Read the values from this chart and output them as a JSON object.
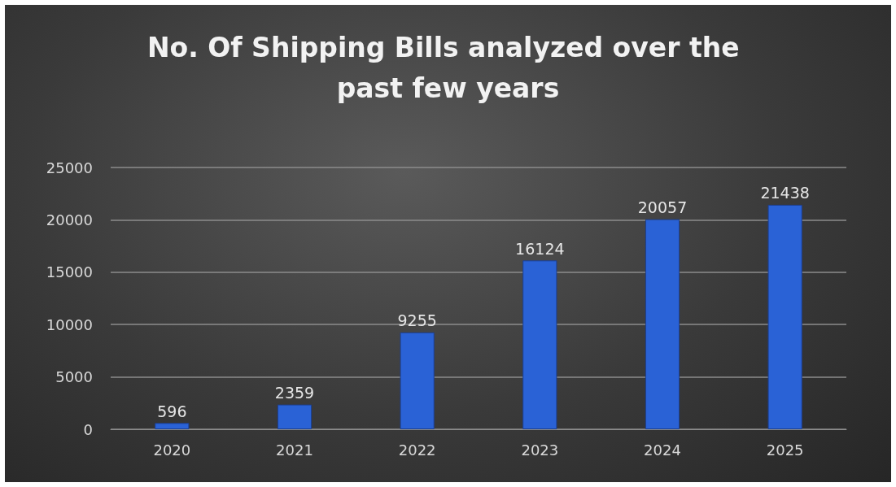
{
  "chart_data": {
    "type": "bar",
    "title": "No. Of Shipping Bills analyzed over the past few years",
    "categories": [
      "2020",
      "2021",
      "2022",
      "2023",
      "2024",
      "2025"
    ],
    "values": [
      596,
      2359,
      9255,
      16124,
      20057,
      21438
    ],
    "color": "#2a62d6",
    "ylim": [
      0,
      25000
    ],
    "yticks": [
      0,
      5000,
      10000,
      15000,
      20000,
      25000
    ],
    "grid": "y",
    "data_labels": true
  }
}
